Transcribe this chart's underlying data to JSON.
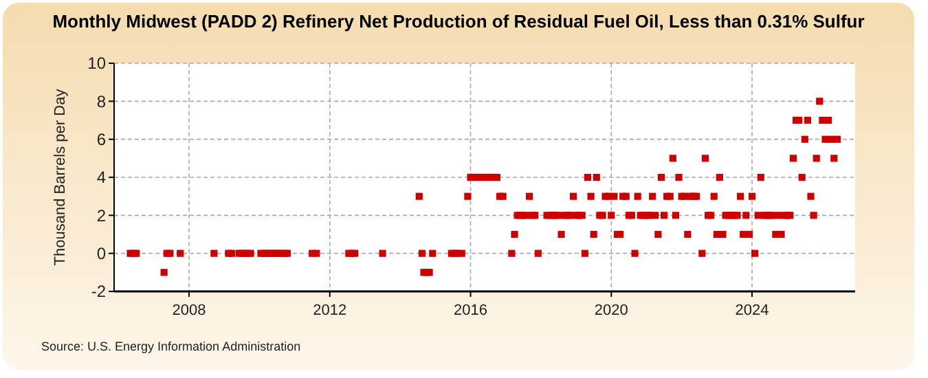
{
  "chart_data": {
    "type": "scatter",
    "title": "Monthly Midwest (PADD 2) Refinery Net Production of Residual Fuel Oil, Less than 0.31% Sulfur",
    "ylabel": "Thousand Barrels per Day",
    "annotations": [
      "Source: U.S. Energy Information Administration"
    ],
    "xlim": [
      2005.87,
      2026.93
    ],
    "xticks": [
      2008,
      2012,
      2016,
      2020,
      2024
    ],
    "ylim": [
      -2,
      10
    ],
    "yticks": [
      -2,
      0,
      2,
      4,
      6,
      8,
      10
    ],
    "grid": true,
    "marker": "square",
    "series": [
      {
        "color": "#cc0000",
        "x": [
          2006.33,
          2006.42,
          2006.5,
          2007.29,
          2007.37,
          2007.46,
          2007.75,
          2008.71,
          2009.12,
          2009.21,
          2009.42,
          2009.5,
          2009.58,
          2009.67,
          2009.75,
          2010.04,
          2010.12,
          2010.21,
          2010.29,
          2010.37,
          2010.46,
          2010.54,
          2010.62,
          2010.71,
          2010.79,
          2011.5,
          2011.62,
          2012.54,
          2012.62,
          2012.71,
          2013.5,
          2014.54,
          2014.62,
          2014.67,
          2014.75,
          2014.83,
          2014.92,
          2015.46,
          2015.54,
          2015.62,
          2015.75,
          2015.92,
          2016.0,
          2016.08,
          2016.17,
          2016.25,
          2016.33,
          2016.42,
          2016.5,
          2016.58,
          2016.67,
          2016.75,
          2016.83,
          2016.92,
          2017.17,
          2017.25,
          2017.33,
          2017.42,
          2017.5,
          2017.58,
          2017.67,
          2017.75,
          2017.83,
          2017.92,
          2018.17,
          2018.25,
          2018.33,
          2018.42,
          2018.5,
          2018.58,
          2018.67,
          2018.75,
          2018.83,
          2018.92,
          2019.0,
          2019.08,
          2019.17,
          2019.25,
          2019.33,
          2019.42,
          2019.5,
          2019.58,
          2019.67,
          2019.75,
          2019.83,
          2019.92,
          2020.0,
          2020.08,
          2020.17,
          2020.25,
          2020.33,
          2020.42,
          2020.5,
          2020.58,
          2020.67,
          2020.75,
          2020.83,
          2020.92,
          2021.0,
          2021.08,
          2021.17,
          2021.25,
          2021.33,
          2021.42,
          2021.5,
          2021.58,
          2021.67,
          2021.75,
          2021.83,
          2021.92,
          2022.0,
          2022.08,
          2022.17,
          2022.25,
          2022.33,
          2022.42,
          2022.58,
          2022.67,
          2022.75,
          2022.83,
          2022.92,
          2023.0,
          2023.08,
          2023.17,
          2023.25,
          2023.33,
          2023.42,
          2023.5,
          2023.58,
          2023.67,
          2023.75,
          2023.83,
          2023.92,
          2024.0,
          2024.08,
          2024.17,
          2024.25,
          2024.33,
          2024.42,
          2024.5,
          2024.58,
          2024.67,
          2024.75,
          2024.83,
          2024.92,
          2025.0,
          2025.08,
          2025.17,
          2025.25,
          2025.33,
          2025.42,
          2025.5,
          2025.58,
          2025.67,
          2025.75,
          2025.83,
          2025.92,
          2026.0,
          2026.08,
          2026.17,
          2026.25,
          2026.33,
          2026.42
        ],
        "values": [
          0,
          0,
          0,
          -1,
          0,
          0,
          0,
          0,
          0,
          0,
          0,
          0,
          0,
          0,
          0,
          0,
          0,
          0,
          0,
          0,
          0,
          0,
          0,
          0,
          0,
          0,
          0,
          0,
          0,
          0,
          0,
          3,
          0,
          -1,
          -1,
          -1,
          0,
          0,
          0,
          0,
          0,
          3,
          4,
          4,
          4,
          4,
          4,
          4,
          4,
          4,
          4,
          4,
          3,
          3,
          0,
          1,
          2,
          2,
          2,
          2,
          3,
          2,
          2,
          0,
          2,
          2,
          2,
          2,
          2,
          1,
          2,
          2,
          2,
          3,
          2,
          2,
          2,
          0,
          4,
          3,
          1,
          4,
          2,
          2,
          3,
          3,
          2,
          3,
          1,
          1,
          3,
          3,
          2,
          2,
          0,
          3,
          2,
          2,
          2,
          2,
          3,
          2,
          1,
          4,
          2,
          3,
          3,
          5,
          2,
          4,
          3,
          3,
          1,
          3,
          3,
          3,
          0,
          5,
          2,
          2,
          3,
          1,
          4,
          1,
          2,
          2,
          2,
          2,
          2,
          3,
          1,
          2,
          1,
          3,
          0,
          2,
          4,
          2,
          2,
          2,
          2,
          1,
          2,
          1,
          2,
          2,
          2,
          5,
          7,
          7,
          4,
          6,
          7,
          3,
          2,
          5,
          8,
          7,
          6,
          7,
          6,
          5,
          6
        ]
      }
    ]
  }
}
